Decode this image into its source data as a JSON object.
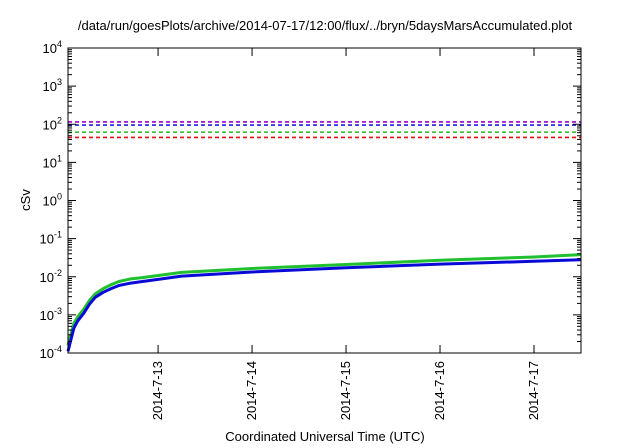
{
  "chart_data": {
    "type": "line",
    "title": "/data/run/goesPlots/archive/2014-07-17/12:00/flux/../bryn/5daysMarsAccumulated.plot",
    "xlabel": "Coordinated Universal Time (UTC)",
    "ylabel": "cSv",
    "yscale": "log",
    "ylim": [
      0.0001,
      10000
    ],
    "xlim": [
      "2014-07-12 01:00",
      "2014-07-17 12:00"
    ],
    "y_ticks": [
      {
        "value": 0.0001,
        "base": "10",
        "exp": "-4"
      },
      {
        "value": 0.001,
        "base": "10",
        "exp": "-3"
      },
      {
        "value": 0.01,
        "base": "10",
        "exp": "-2"
      },
      {
        "value": 0.1,
        "base": "10",
        "exp": "-1"
      },
      {
        "value": 1,
        "base": "10",
        "exp": "0"
      },
      {
        "value": 10,
        "base": "10",
        "exp": "1"
      },
      {
        "value": 100,
        "base": "10",
        "exp": "2"
      },
      {
        "value": 1000,
        "base": "10",
        "exp": "3"
      },
      {
        "value": 10000,
        "base": "10",
        "exp": "4"
      }
    ],
    "x_ticks": [
      {
        "value": "2014-07-13 00:00",
        "label": "2014-7-13"
      },
      {
        "value": "2014-07-14 00:00",
        "label": "2014-7-14"
      },
      {
        "value": "2014-07-15 00:00",
        "label": "2014-7-15"
      },
      {
        "value": "2014-07-16 00:00",
        "label": "2014-7-16"
      },
      {
        "value": "2014-07-17 00:00",
        "label": "2014-7-17"
      }
    ],
    "grid": false,
    "legend": "none",
    "thresholds": [
      {
        "value": 115,
        "color": "#a000d0",
        "dash": true
      },
      {
        "value": 95,
        "color": "#2020e0",
        "dash": true
      },
      {
        "value": 62,
        "color": "#30c030",
        "dash": true
      },
      {
        "value": 45,
        "color": "#e01010",
        "dash": true
      }
    ],
    "series": [
      {
        "color": "#20c030",
        "x": [
          "2014-07-12 01:00",
          "2014-07-12 01:30",
          "2014-07-12 02:30",
          "2014-07-12 03:30",
          "2014-07-12 05:00",
          "2014-07-12 06:30",
          "2014-07-12 08:00",
          "2014-07-12 10:00",
          "2014-07-12 12:00",
          "2014-07-12 14:00",
          "2014-07-12 17:00",
          "2014-07-12 20:00",
          "2014-07-13 00:00",
          "2014-07-13 06:00",
          "2014-07-14 00:00",
          "2014-07-15 00:00",
          "2014-07-16 00:00",
          "2014-07-17 00:00",
          "2014-07-17 12:00"
        ],
        "y": [
          0.00016,
          0.00025,
          0.0006,
          0.0009,
          0.0014,
          0.0024,
          0.0036,
          0.0049,
          0.0062,
          0.0075,
          0.0088,
          0.0095,
          0.0108,
          0.013,
          0.0165,
          0.021,
          0.027,
          0.033,
          0.038
        ]
      },
      {
        "color": "#0a0ad8",
        "x": [
          "2014-07-12 01:00",
          "2014-07-12 01:30",
          "2014-07-12 02:30",
          "2014-07-12 03:30",
          "2014-07-12 05:00",
          "2014-07-12 06:30",
          "2014-07-12 08:00",
          "2014-07-12 10:00",
          "2014-07-12 12:00",
          "2014-07-12 14:00",
          "2014-07-12 17:00",
          "2014-07-12 20:00",
          "2014-07-13 00:00",
          "2014-07-13 06:00",
          "2014-07-14 00:00",
          "2014-07-15 00:00",
          "2014-07-16 00:00",
          "2014-07-17 00:00",
          "2014-07-17 12:00"
        ],
        "y": [
          0.00011,
          0.00018,
          0.00045,
          0.0007,
          0.0011,
          0.0019,
          0.0029,
          0.0039,
          0.0049,
          0.0059,
          0.0068,
          0.0075,
          0.0085,
          0.0104,
          0.0133,
          0.0172,
          0.0215,
          0.0255,
          0.028
        ]
      }
    ]
  }
}
